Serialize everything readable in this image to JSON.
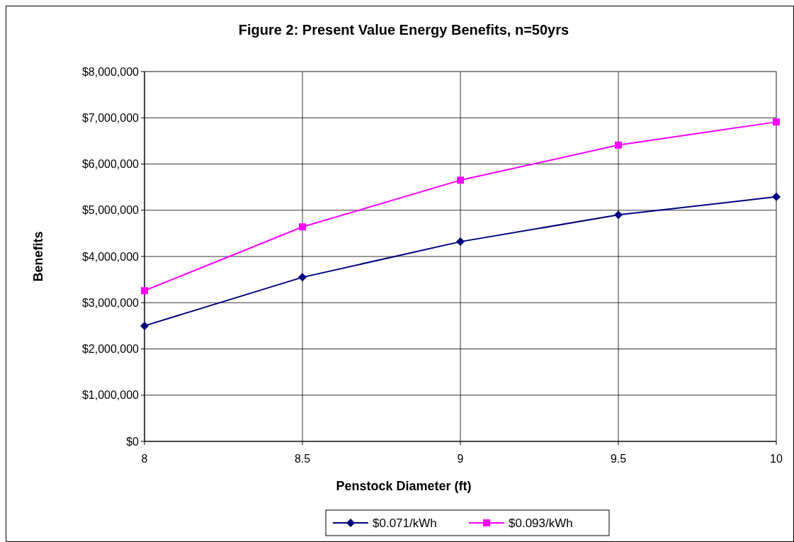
{
  "chart_data": {
    "type": "line",
    "title": "Figure 2: Present Value Energy Benefits, n=50yrs",
    "xlabel": "Penstock Diameter (ft)",
    "ylabel": "Benefits",
    "x": [
      8,
      8.5,
      9,
      9.5,
      10
    ],
    "series": [
      {
        "name": "$0.071/kWh",
        "color": "#000080",
        "marker": "diamond",
        "values": [
          2500000,
          3550000,
          4320000,
          4900000,
          5290000
        ]
      },
      {
        "name": "$0.093/kWh",
        "color": "#ff00ff",
        "marker": "square",
        "values": [
          3260000,
          4640000,
          5650000,
          6410000,
          6910000
        ]
      }
    ],
    "xlim": [
      8,
      10
    ],
    "xticks": [
      8,
      8.5,
      9,
      9.5,
      10
    ],
    "ylim": [
      0,
      8000000
    ],
    "yticks": [
      {
        "value": 0,
        "label": "$0"
      },
      {
        "value": 1000000,
        "label": "$1,000,000"
      },
      {
        "value": 2000000,
        "label": "$2,000,000"
      },
      {
        "value": 3000000,
        "label": "$3,000,000"
      },
      {
        "value": 4000000,
        "label": "$4,000,000"
      },
      {
        "value": 5000000,
        "label": "$5,000,000"
      },
      {
        "value": 6000000,
        "label": "$6,000,000"
      },
      {
        "value": 7000000,
        "label": "$7,000,000"
      },
      {
        "value": 8000000,
        "label": "$8,000,000"
      }
    ],
    "grid": true,
    "legend": "bottom",
    "line_style": "solid"
  }
}
